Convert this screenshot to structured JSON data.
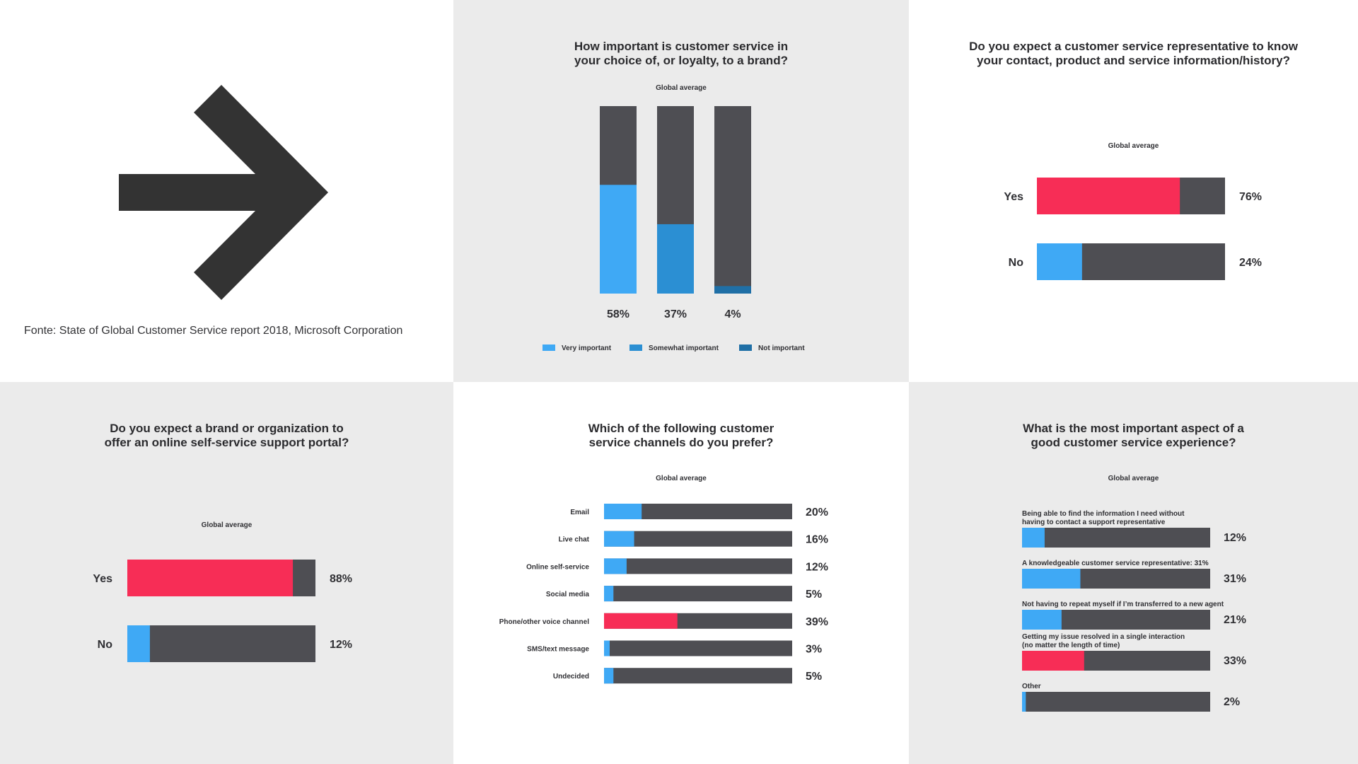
{
  "colors": {
    "track": "#4e4e53",
    "light_blue": "#3fa9f5",
    "mid_blue": "#2b8fd3",
    "dark_blue": "#1f6fa6",
    "red": "#f72d56",
    "arrow": "#333333",
    "text": "#303034"
  },
  "source": {
    "icon": "arrow-right-icon",
    "text": "Fonte: State of Global Customer Service report 2018, Microsoft Corporation"
  },
  "chart_data": [
    {
      "id": "q1",
      "type": "bar",
      "orientation": "vertical",
      "stacked_100": true,
      "title": "How important is customer service in\nyour choice of, or loyalty, to a brand?",
      "subtitle": "Global average",
      "categories": [
        "Very important",
        "Somewhat important",
        "Not important"
      ],
      "values": [
        58,
        37,
        4
      ],
      "labels": [
        "58%",
        "37%",
        "4%"
      ],
      "colors": [
        "#3fa9f5",
        "#2b8fd3",
        "#1f6fa6"
      ],
      "ylim": [
        0,
        100
      ],
      "grid": false,
      "legend": {
        "placement": "bottom",
        "entries": [
          "Very important",
          "Somewhat important",
          "Not important"
        ]
      }
    },
    {
      "id": "q2",
      "type": "bar",
      "orientation": "horizontal",
      "stacked_100": true,
      "title": "Do you expect a customer service representative to know\nyour contact, product and service information/history?",
      "subtitle": "Global average",
      "categories": [
        "Yes",
        "No"
      ],
      "values": [
        76,
        24
      ],
      "labels": [
        "76%",
        "24%"
      ],
      "colors": [
        "#f72d56",
        "#3fa9f5"
      ],
      "xlim": [
        0,
        100
      ],
      "grid": false
    },
    {
      "id": "q3",
      "type": "bar",
      "orientation": "horizontal",
      "stacked_100": true,
      "title": "Do you expect a brand or organization to\noffer an online self-service support portal?",
      "subtitle": "Global average",
      "categories": [
        "Yes",
        "No"
      ],
      "values": [
        88,
        12
      ],
      "labels": [
        "88%",
        "12%"
      ],
      "colors": [
        "#f72d56",
        "#3fa9f5"
      ],
      "xlim": [
        0,
        100
      ],
      "grid": false
    },
    {
      "id": "q4",
      "type": "bar",
      "orientation": "horizontal",
      "stacked_100": true,
      "title": "Which of the following customer\nservice channels do you prefer?",
      "subtitle": "Global average",
      "categories": [
        "Email",
        "Live chat",
        "Online self-service",
        "Social media",
        "Phone/other voice channel",
        "SMS/text message",
        "Undecided"
      ],
      "values": [
        20,
        16,
        12,
        5,
        39,
        3,
        5
      ],
      "labels": [
        "20%",
        "16%",
        "12%",
        "5%",
        "39%",
        "3%",
        "5%"
      ],
      "colors": [
        "#3fa9f5",
        "#3fa9f5",
        "#3fa9f5",
        "#3fa9f5",
        "#f72d56",
        "#3fa9f5",
        "#3fa9f5"
      ],
      "xlim": [
        0,
        100
      ],
      "grid": false
    },
    {
      "id": "q5",
      "type": "bar",
      "orientation": "horizontal",
      "stacked_100": true,
      "title": "What is the most important aspect of a\ngood customer service experience?",
      "subtitle": "Global average",
      "categories": [
        "Being able to find the information I need without\nhaving to contact a support representative",
        "A knowledgeable customer service representative: 31%",
        "Not having to repeat myself if I’m transferred to a new agent",
        "Getting my issue resolved in a single interaction\n(no matter the length of time)",
        "Other"
      ],
      "values": [
        12,
        31,
        21,
        33,
        2
      ],
      "labels": [
        "12%",
        "31%",
        "21%",
        "33%",
        "2%"
      ],
      "colors": [
        "#3fa9f5",
        "#3fa9f5",
        "#3fa9f5",
        "#f72d56",
        "#3fa9f5"
      ],
      "xlim": [
        0,
        100
      ],
      "grid": false
    }
  ]
}
